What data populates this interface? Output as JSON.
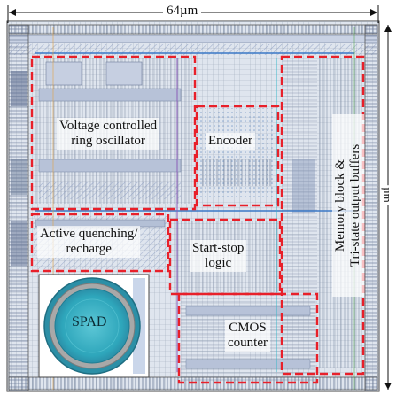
{
  "dimensions": {
    "width_label": "64µm",
    "height_label": "µm"
  },
  "blocks": {
    "vco": {
      "line1": "Voltage controlled",
      "line2": "ring oscillator"
    },
    "encoder": {
      "label": "Encoder"
    },
    "memory": {
      "line1": "Memory block &",
      "line2": "Tri-state output buffers"
    },
    "quench": {
      "line1": "Active quenching/",
      "line2": "recharge"
    },
    "startstop": {
      "line1": "Start-stop",
      "line2": "logic"
    },
    "spad": {
      "label": "SPAD"
    },
    "counter": {
      "line1": "CMOS",
      "line2": "counter"
    }
  },
  "colors": {
    "highlight_dash": "#e8202a",
    "metal_blue": "#4a86c8",
    "metal_gray": "#8a8a8a",
    "spad_cyan": "#3ab7c9"
  }
}
